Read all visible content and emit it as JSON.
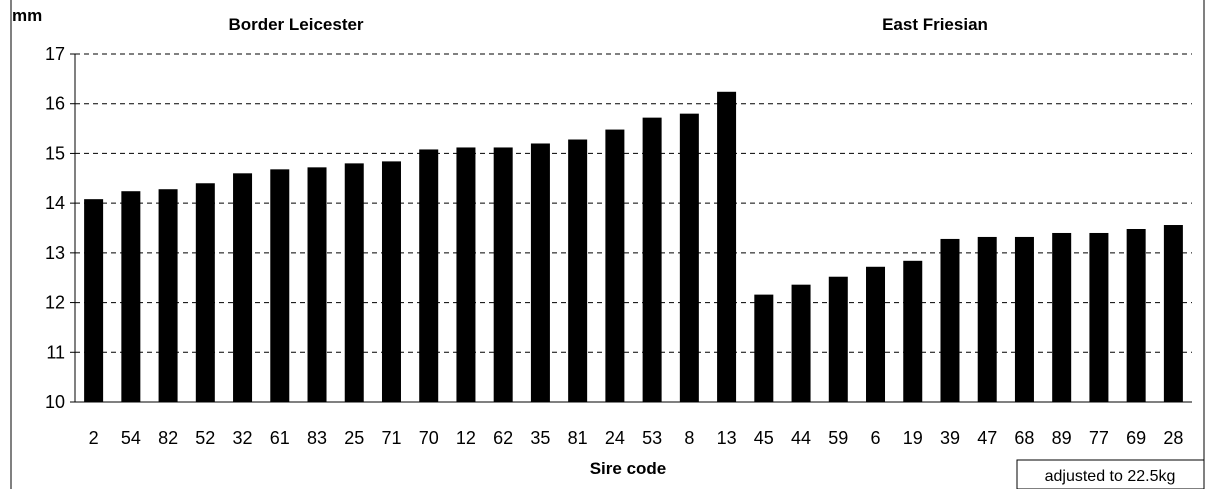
{
  "chart_data": {
    "type": "bar",
    "ylabel": "mm",
    "xlabel": "Sire code",
    "ylim": [
      10,
      17
    ],
    "yticks": [
      10,
      11,
      12,
      13,
      14,
      15,
      16,
      17
    ],
    "grid": "horizontal dashed",
    "bar_color": "#000000",
    "groups": [
      {
        "name": "Border Leicester",
        "categories": [
          "2",
          "54",
          "82",
          "52",
          "32",
          "61",
          "83",
          "25",
          "71",
          "70",
          "12",
          "62",
          "35",
          "81",
          "24",
          "53",
          "8",
          "13"
        ],
        "values": [
          14.08,
          14.24,
          14.28,
          14.4,
          14.6,
          14.68,
          14.72,
          14.8,
          14.84,
          15.08,
          15.12,
          15.12,
          15.2,
          15.28,
          15.48,
          15.72,
          15.8,
          16.24
        ]
      },
      {
        "name": "East Friesian",
        "categories": [
          "45",
          "44",
          "59",
          "6",
          "19",
          "39",
          "47",
          "68",
          "89",
          "77",
          "69",
          "28"
        ],
        "values": [
          12.16,
          12.36,
          12.52,
          12.72,
          12.84,
          13.28,
          13.32,
          13.32,
          13.4,
          13.4,
          13.48,
          13.56
        ]
      }
    ],
    "annotation": "adjusted to 22.5kg"
  }
}
